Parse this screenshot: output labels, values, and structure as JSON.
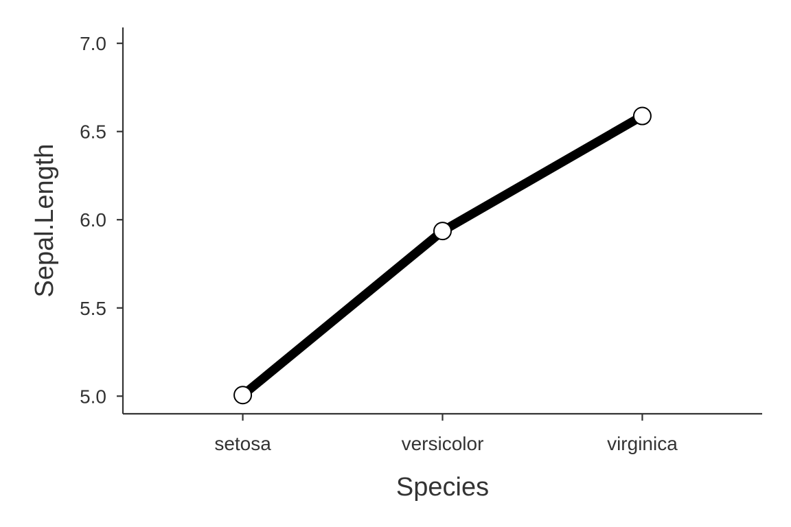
{
  "chart_data": {
    "type": "line",
    "title": "",
    "xlabel": "Species",
    "ylabel": "Sepal.Length",
    "categories": [
      "setosa",
      "versicolor",
      "virginica"
    ],
    "series": [
      {
        "values": [
          5.006,
          5.936,
          6.588
        ]
      }
    ],
    "ylim": [
      4.9,
      7.09
    ],
    "yticks": [
      5.0,
      5.5,
      6.0,
      6.5,
      7.0
    ],
    "ytick_labels": [
      "5.0",
      "5.5",
      "6.0",
      "6.5",
      "7.0"
    ],
    "grid": false,
    "legend": "none",
    "colors": {
      "line": "#000000",
      "marker_fill": "#ffffff",
      "marker_stroke": "#000000",
      "axis": "#333333",
      "text": "#333333"
    }
  }
}
